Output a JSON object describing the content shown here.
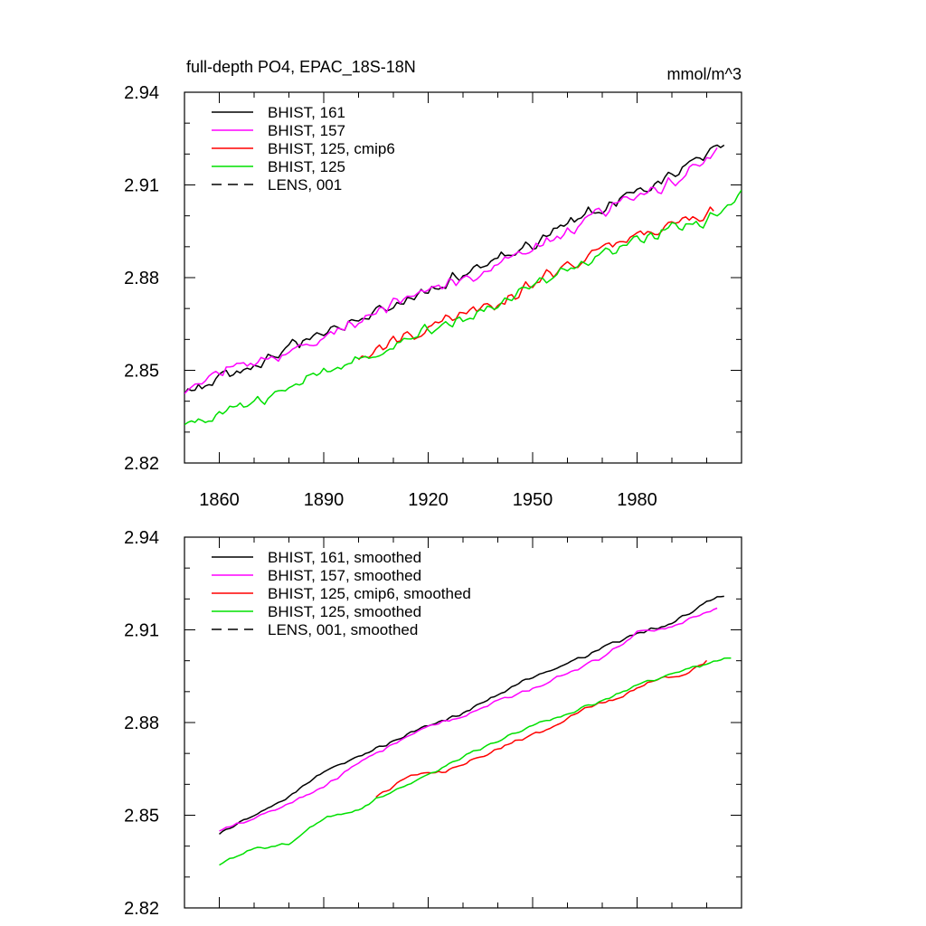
{
  "chart_data": [
    {
      "type": "line",
      "title": "full-depth PO4, EPAC_18S-18N",
      "units": "mmol/m^3",
      "xlim": [
        1850,
        2010
      ],
      "ylim": [
        2.82,
        2.94
      ],
      "yticks": [
        "2.94",
        "2.91",
        "2.88",
        "2.85",
        "2.82"
      ],
      "xticks": [
        "1860",
        "1890",
        "1920",
        "1950",
        "1980"
      ],
      "legend_location": "top-left",
      "series": [
        {
          "name": "BHIST, 161",
          "color": "#000000",
          "dash": "solid",
          "x_range": [
            1850,
            2005
          ],
          "y_anchors": [
            [
              1850,
              2.843
            ],
            [
              1870,
              2.851
            ],
            [
              1890,
              2.863
            ],
            [
              1910,
              2.871
            ],
            [
              1930,
              2.881
            ],
            [
              1950,
              2.891
            ],
            [
              1970,
              2.903
            ],
            [
              1990,
              2.913
            ],
            [
              2005,
              2.924
            ]
          ],
          "noise": 0.0025,
          "seed": 161
        },
        {
          "name": "BHIST, 157",
          "color": "#ff00ff",
          "dash": "solid",
          "x_range": [
            1850,
            2003
          ],
          "y_anchors": [
            [
              1850,
              2.843
            ],
            [
              1856,
              2.849
            ],
            [
              1870,
              2.852
            ],
            [
              1890,
              2.861
            ],
            [
              1910,
              2.872
            ],
            [
              1930,
              2.879
            ],
            [
              1950,
              2.889
            ],
            [
              1970,
              2.901
            ],
            [
              1990,
              2.911
            ],
            [
              2003,
              2.921
            ]
          ],
          "noise": 0.0025,
          "seed": 157
        },
        {
          "name": "BHIST, 125, cmip6",
          "color": "#ff0000",
          "dash": "solid",
          "x_range": [
            1900,
            2002
          ],
          "y_anchors": [
            [
              1900,
              2.854
            ],
            [
              1920,
              2.864
            ],
            [
              1940,
              2.872
            ],
            [
              1960,
              2.884
            ],
            [
              1980,
              2.894
            ],
            [
              2002,
              2.901
            ]
          ],
          "noise": 0.0025,
          "seed": 126
        },
        {
          "name": "BHIST, 125",
          "color": "#00e000",
          "dash": "solid",
          "x_range": [
            1850,
            2010
          ],
          "y_anchors": [
            [
              1850,
              2.833
            ],
            [
              1870,
              2.839
            ],
            [
              1890,
              2.849
            ],
            [
              1910,
              2.859
            ],
            [
              1930,
              2.867
            ],
            [
              1950,
              2.878
            ],
            [
              1970,
              2.887
            ],
            [
              1990,
              2.896
            ],
            [
              2000,
              2.898
            ],
            [
              2010,
              2.907
            ]
          ],
          "noise": 0.0025,
          "seed": 125
        },
        {
          "name": "LENS, 001",
          "color": "#000000",
          "dash": "dashed",
          "x_range": [],
          "y_anchors": [],
          "noise": 0,
          "seed": 1
        }
      ]
    },
    {
      "type": "line",
      "title": "",
      "units": "",
      "xlim": [
        1850,
        2010
      ],
      "ylim": [
        2.82,
        2.94
      ],
      "yticks": [
        "2.94",
        "2.91",
        "2.88",
        "2.85",
        "2.82"
      ],
      "xticks": [],
      "legend_location": "top-left",
      "series": [
        {
          "name": "BHIST, 161, smoothed",
          "color": "#000000",
          "dash": "solid",
          "x_range": [
            1860,
            2005
          ],
          "y_anchors": [
            [
              1860,
              2.844
            ],
            [
              1870,
              2.85
            ],
            [
              1880,
              2.856
            ],
            [
              1890,
              2.864
            ],
            [
              1900,
              2.869
            ],
            [
              1910,
              2.874
            ],
            [
              1920,
              2.879
            ],
            [
              1930,
              2.883
            ],
            [
              1940,
              2.889
            ],
            [
              1950,
              2.895
            ],
            [
              1960,
              2.899
            ],
            [
              1970,
              2.904
            ],
            [
              1980,
              2.909
            ],
            [
              1990,
              2.912
            ],
            [
              2000,
              2.919
            ],
            [
              2005,
              2.921
            ]
          ],
          "noise": 0.0006,
          "seed": 261
        },
        {
          "name": "BHIST, 157, smoothed",
          "color": "#ff00ff",
          "dash": "solid",
          "x_range": [
            1860,
            2003
          ],
          "y_anchors": [
            [
              1860,
              2.845
            ],
            [
              1867,
              2.848
            ],
            [
              1870,
              2.849
            ],
            [
              1880,
              2.854
            ],
            [
              1890,
              2.859
            ],
            [
              1900,
              2.867
            ],
            [
              1910,
              2.873
            ],
            [
              1920,
              2.879
            ],
            [
              1930,
              2.882
            ],
            [
              1940,
              2.887
            ],
            [
              1950,
              2.891
            ],
            [
              1960,
              2.896
            ],
            [
              1970,
              2.901
            ],
            [
              1980,
              2.909
            ],
            [
              1990,
              2.911
            ],
            [
              2003,
              2.917
            ]
          ],
          "noise": 0.0006,
          "seed": 257
        },
        {
          "name": "BHIST, 125, cmip6, smoothed",
          "color": "#ff0000",
          "dash": "solid",
          "x_range": [
            1905,
            2000
          ],
          "y_anchors": [
            [
              1905,
              2.856
            ],
            [
              1915,
              2.863
            ],
            [
              1925,
              2.864
            ],
            [
              1935,
              2.869
            ],
            [
              1945,
              2.874
            ],
            [
              1955,
              2.878
            ],
            [
              1965,
              2.885
            ],
            [
              1975,
              2.888
            ],
            [
              1985,
              2.894
            ],
            [
              1995,
              2.896
            ],
            [
              2000,
              2.9
            ]
          ],
          "noise": 0.0006,
          "seed": 226
        },
        {
          "name": "BHIST, 125, smoothed",
          "color": "#00e000",
          "dash": "solid",
          "x_range": [
            1860,
            2007
          ],
          "y_anchors": [
            [
              1860,
              2.834
            ],
            [
              1870,
              2.839
            ],
            [
              1880,
              2.841
            ],
            [
              1890,
              2.849
            ],
            [
              1900,
              2.852
            ],
            [
              1910,
              2.858
            ],
            [
              1920,
              2.863
            ],
            [
              1930,
              2.869
            ],
            [
              1940,
              2.874
            ],
            [
              1950,
              2.879
            ],
            [
              1960,
              2.883
            ],
            [
              1970,
              2.887
            ],
            [
              1980,
              2.892
            ],
            [
              1990,
              2.896
            ],
            [
              2000,
              2.899
            ],
            [
              2007,
              2.901
            ]
          ],
          "noise": 0.0006,
          "seed": 225
        },
        {
          "name": "LENS, 001, smoothed",
          "color": "#000000",
          "dash": "dashed",
          "x_range": [],
          "y_anchors": [],
          "noise": 0,
          "seed": 2
        }
      ]
    }
  ]
}
